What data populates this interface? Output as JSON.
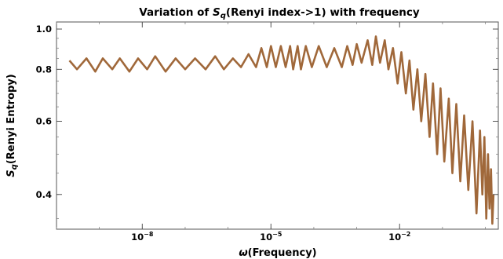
{
  "chart_data": {
    "type": "line",
    "title_prefix": "Variation of ",
    "title_symbol": "S",
    "title_subscript": "q",
    "title_suffix": "(Renyi index->1) with frequency",
    "xlabel_symbol": "ω",
    "xlabel_text": "(Frequency)",
    "ylabel_symbol": "S",
    "ylabel_subscript": "q",
    "ylabel_text": "(Renyi Entropy)",
    "x_scale": "log",
    "y_scale": "log",
    "xlim": [
      1e-10,
      2.0
    ],
    "ylim": [
      0.33,
      1.04
    ],
    "x_ticks": [
      {
        "value": 1e-08,
        "base": "10",
        "exp": "−8"
      },
      {
        "value": 1e-05,
        "base": "10",
        "exp": "−5"
      },
      {
        "value": 0.01,
        "base": "10",
        "exp": "−2"
      }
    ],
    "y_ticks": [
      {
        "value": 0.4,
        "label": "0.4"
      },
      {
        "value": 0.6,
        "label": "0.6"
      },
      {
        "value": 0.8,
        "label": "0.8"
      },
      {
        "value": 1.0,
        "label": "1.0"
      }
    ],
    "grid": false,
    "legend": "none",
    "series": [
      {
        "color": "#a0683a",
        "points": [
          [
            2e-10,
            0.84
          ],
          [
            3e-10,
            0.8
          ],
          [
            5e-10,
            0.85
          ],
          [
            8e-10,
            0.79
          ],
          [
            1.2e-09,
            0.85
          ],
          [
            2e-09,
            0.8
          ],
          [
            3e-09,
            0.85
          ],
          [
            5e-09,
            0.79
          ],
          [
            8e-09,
            0.85
          ],
          [
            1.3e-08,
            0.8
          ],
          [
            2e-08,
            0.86
          ],
          [
            3.5e-08,
            0.79
          ],
          [
            6e-08,
            0.85
          ],
          [
            1e-07,
            0.8
          ],
          [
            1.7e-07,
            0.85
          ],
          [
            3e-07,
            0.8
          ],
          [
            5e-07,
            0.86
          ],
          [
            8e-07,
            0.8
          ],
          [
            1.3e-06,
            0.85
          ],
          [
            2e-06,
            0.81
          ],
          [
            3e-06,
            0.87
          ],
          [
            4.5e-06,
            0.81
          ],
          [
            6e-06,
            0.9
          ],
          [
            8e-06,
            0.81
          ],
          [
            1e-05,
            0.91
          ],
          [
            1.3e-05,
            0.81
          ],
          [
            1.7e-05,
            0.91
          ],
          [
            2.2e-05,
            0.81
          ],
          [
            2.8e-05,
            0.91
          ],
          [
            3.3e-05,
            0.8
          ],
          [
            4.2e-05,
            0.91
          ],
          [
            5e-05,
            0.8
          ],
          [
            6.5e-05,
            0.91
          ],
          [
            9e-05,
            0.81
          ],
          [
            0.00013,
            0.91
          ],
          [
            0.0002,
            0.81
          ],
          [
            0.0003,
            0.9
          ],
          [
            0.00045,
            0.81
          ],
          [
            0.0006,
            0.91
          ],
          [
            0.0008,
            0.82
          ],
          [
            0.001,
            0.92
          ],
          [
            0.0013,
            0.83
          ],
          [
            0.0018,
            0.94
          ],
          [
            0.0023,
            0.82
          ],
          [
            0.0028,
            0.96
          ],
          [
            0.0035,
            0.83
          ],
          [
            0.0045,
            0.94
          ],
          [
            0.0055,
            0.8
          ],
          [
            0.007,
            0.9
          ],
          [
            0.009,
            0.74
          ],
          [
            0.011,
            0.88
          ],
          [
            0.014,
            0.7
          ],
          [
            0.017,
            0.84
          ],
          [
            0.021,
            0.64
          ],
          [
            0.026,
            0.8
          ],
          [
            0.032,
            0.6
          ],
          [
            0.04,
            0.78
          ],
          [
            0.05,
            0.55
          ],
          [
            0.06,
            0.74
          ],
          [
            0.075,
            0.5
          ],
          [
            0.09,
            0.72
          ],
          [
            0.11,
            0.48
          ],
          [
            0.14,
            0.68
          ],
          [
            0.17,
            0.45
          ],
          [
            0.21,
            0.66
          ],
          [
            0.26,
            0.43
          ],
          [
            0.32,
            0.62
          ],
          [
            0.4,
            0.41
          ],
          [
            0.5,
            0.6
          ],
          [
            0.62,
            0.36
          ],
          [
            0.75,
            0.57
          ],
          [
            0.85,
            0.4
          ],
          [
            0.95,
            0.55
          ],
          [
            1.05,
            0.35
          ],
          [
            1.15,
            0.5
          ],
          [
            1.25,
            0.37
          ],
          [
            1.35,
            0.46
          ],
          [
            1.45,
            0.34
          ],
          [
            1.55,
            0.4
          ]
        ]
      }
    ]
  }
}
